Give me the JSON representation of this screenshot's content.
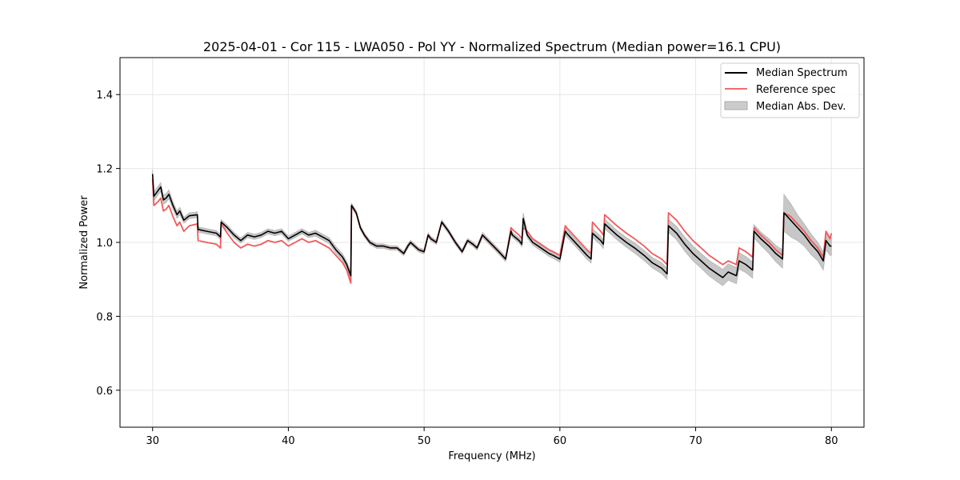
{
  "chart_data": {
    "type": "line",
    "title": "2025-04-01 - Cor 115 - LWA050 - Pol YY - Normalized Spectrum (Median power=16.1 CPU)",
    "xlabel": "Frequency (MHz)",
    "ylabel": "Normalized Power",
    "xlim": [
      27.6,
      82.4
    ],
    "ylim": [
      0.5,
      1.5
    ],
    "xticks": [
      30,
      40,
      50,
      60,
      70,
      80
    ],
    "xtick_labels": [
      "30",
      "40",
      "50",
      "60",
      "70",
      "80"
    ],
    "yticks": [
      0.6,
      0.8,
      1.0,
      1.2,
      1.4
    ],
    "ytick_labels": [
      "0.6",
      "0.8",
      "1.0",
      "1.2",
      "1.4"
    ],
    "grid": true,
    "legend_position": "top-right",
    "legend": [
      "Median Spectrum",
      "Reference spec",
      "Median Abs. Dev."
    ],
    "colors": {
      "median": "#000000",
      "reference": "#f15a5a",
      "mad": "#a0a0a0",
      "grid": "#e6e6e6"
    },
    "x": [
      30.0,
      30.1,
      30.4,
      30.6,
      30.8,
      31.0,
      31.2,
      31.5,
      31.8,
      32.0,
      32.3,
      32.7,
      33.3,
      33.35,
      34.0,
      34.7,
      35.0,
      35.05,
      35.5,
      36.0,
      36.5,
      37.0,
      37.5,
      38.0,
      38.5,
      39.0,
      39.5,
      40.0,
      40.5,
      41.0,
      41.5,
      42.0,
      42.5,
      43.0,
      43.5,
      44.0,
      44.3,
      44.6,
      44.65,
      45.0,
      45.3,
      45.6,
      46.0,
      46.5,
      47.0,
      47.5,
      48.0,
      48.5,
      48.8,
      49.0,
      49.3,
      49.6,
      50.0,
      50.3,
      50.5,
      50.9,
      51.3,
      51.4,
      51.8,
      52.3,
      52.8,
      53.2,
      53.6,
      53.9,
      54.3,
      54.7,
      55.1,
      55.5,
      56.0,
      56.4,
      56.5,
      57.0,
      57.2,
      57.3,
      57.6,
      58.0,
      58.4,
      58.8,
      59.2,
      59.5,
      60.0,
      60.4,
      60.5,
      61.0,
      61.5,
      62.0,
      62.3,
      62.4,
      63.0,
      63.2,
      63.3,
      63.6,
      64.2,
      64.9,
      65.5,
      66.2,
      66.8,
      67.5,
      67.9,
      68.0,
      68.6,
      69.2,
      69.8,
      70.4,
      71.0,
      71.6,
      72.0,
      72.4,
      73.0,
      73.2,
      73.7,
      74.2,
      74.3,
      74.8,
      75.4,
      75.9,
      76.4,
      76.5,
      77.0,
      77.5,
      78.0,
      78.5,
      79.0,
      79.4,
      79.6,
      79.9,
      80.0
    ],
    "series": [
      {
        "name": "Median Spectrum",
        "values": [
          1.185,
          1.125,
          1.14,
          1.15,
          1.115,
          1.12,
          1.13,
          1.1,
          1.075,
          1.085,
          1.06,
          1.072,
          1.075,
          1.035,
          1.03,
          1.025,
          1.015,
          1.055,
          1.04,
          1.02,
          1.005,
          1.02,
          1.015,
          1.02,
          1.03,
          1.025,
          1.03,
          1.01,
          1.02,
          1.03,
          1.02,
          1.025,
          1.015,
          1.005,
          0.98,
          0.96,
          0.94,
          0.91,
          1.1,
          1.08,
          1.04,
          1.02,
          1.0,
          0.99,
          0.99,
          0.985,
          0.985,
          0.97,
          0.99,
          1.0,
          0.99,
          0.98,
          0.975,
          1.02,
          1.01,
          1.0,
          1.055,
          1.05,
          1.03,
          1.0,
          0.975,
          1.005,
          0.995,
          0.985,
          1.02,
          1.005,
          0.99,
          0.975,
          0.955,
          1.03,
          1.02,
          1.005,
          0.995,
          1.065,
          1.02,
          1.0,
          0.99,
          0.98,
          0.97,
          0.965,
          0.955,
          1.03,
          1.025,
          1.005,
          0.985,
          0.965,
          0.955,
          1.025,
          1.005,
          0.995,
          1.05,
          1.04,
          1.02,
          1.0,
          0.985,
          0.965,
          0.945,
          0.93,
          0.915,
          1.045,
          1.025,
          0.995,
          0.97,
          0.95,
          0.93,
          0.915,
          0.905,
          0.92,
          0.91,
          0.95,
          0.94,
          0.925,
          1.03,
          1.01,
          0.99,
          0.97,
          0.955,
          1.08,
          1.06,
          1.04,
          1.02,
          0.995,
          0.975,
          0.95,
          1.005,
          0.99,
          0.99
        ]
      },
      {
        "name": "Reference spec",
        "values": [
          1.17,
          1.1,
          1.11,
          1.12,
          1.085,
          1.09,
          1.1,
          1.07,
          1.045,
          1.055,
          1.03,
          1.045,
          1.05,
          1.005,
          1.0,
          0.995,
          0.985,
          1.05,
          1.025,
          1.0,
          0.985,
          0.995,
          0.99,
          0.995,
          1.005,
          1.0,
          1.005,
          0.99,
          1.0,
          1.01,
          1.0,
          1.005,
          0.995,
          0.985,
          0.965,
          0.945,
          0.925,
          0.89,
          1.1,
          1.08,
          1.04,
          1.02,
          1.0,
          0.99,
          0.99,
          0.985,
          0.985,
          0.97,
          0.99,
          1.0,
          0.99,
          0.98,
          0.975,
          1.02,
          1.01,
          1.0,
          1.055,
          1.05,
          1.03,
          1.0,
          0.975,
          1.005,
          0.995,
          0.985,
          1.02,
          1.005,
          0.99,
          0.975,
          0.955,
          1.04,
          1.035,
          1.02,
          1.01,
          1.04,
          1.03,
          1.01,
          1.0,
          0.99,
          0.98,
          0.975,
          0.965,
          1.045,
          1.04,
          1.02,
          1.0,
          0.98,
          0.97,
          1.055,
          1.03,
          1.02,
          1.075,
          1.065,
          1.045,
          1.025,
          1.01,
          0.99,
          0.97,
          0.955,
          0.94,
          1.08,
          1.06,
          1.03,
          1.005,
          0.985,
          0.965,
          0.95,
          0.94,
          0.95,
          0.94,
          0.985,
          0.975,
          0.96,
          1.04,
          1.02,
          1.0,
          0.98,
          0.965,
          1.08,
          1.07,
          1.05,
          1.03,
          1.005,
          0.985,
          0.96,
          1.03,
          1.01,
          1.025
        ]
      },
      {
        "name": "Median Abs. Dev.",
        "values": [
          0.012,
          0.012,
          0.012,
          0.012,
          0.012,
          0.012,
          0.012,
          0.01,
          0.01,
          0.01,
          0.008,
          0.008,
          0.008,
          0.007,
          0.007,
          0.007,
          0.007,
          0.007,
          0.007,
          0.007,
          0.007,
          0.007,
          0.007,
          0.007,
          0.007,
          0.007,
          0.007,
          0.007,
          0.007,
          0.007,
          0.007,
          0.008,
          0.008,
          0.008,
          0.009,
          0.009,
          0.009,
          0.01,
          0.006,
          0.006,
          0.006,
          0.006,
          0.006,
          0.006,
          0.006,
          0.006,
          0.006,
          0.006,
          0.006,
          0.006,
          0.006,
          0.006,
          0.006,
          0.006,
          0.006,
          0.006,
          0.006,
          0.006,
          0.006,
          0.006,
          0.006,
          0.006,
          0.006,
          0.006,
          0.007,
          0.007,
          0.007,
          0.007,
          0.007,
          0.007,
          0.007,
          0.007,
          0.007,
          0.015,
          0.008,
          0.008,
          0.008,
          0.008,
          0.008,
          0.008,
          0.009,
          0.01,
          0.01,
          0.01,
          0.01,
          0.011,
          0.011,
          0.012,
          0.012,
          0.012,
          0.013,
          0.013,
          0.013,
          0.013,
          0.014,
          0.014,
          0.014,
          0.015,
          0.015,
          0.018,
          0.018,
          0.019,
          0.02,
          0.02,
          0.021,
          0.022,
          0.022,
          0.022,
          0.022,
          0.022,
          0.022,
          0.022,
          0.018,
          0.018,
          0.02,
          0.022,
          0.025,
          0.05,
          0.045,
          0.035,
          0.03,
          0.028,
          0.025,
          0.025,
          0.025,
          0.025,
          0.025
        ]
      }
    ]
  }
}
